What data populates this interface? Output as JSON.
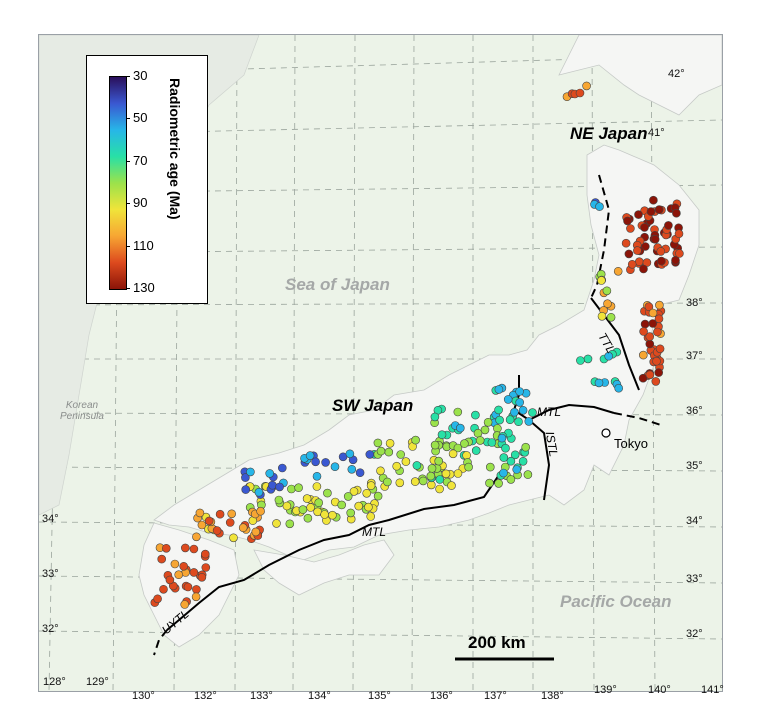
{
  "legend": {
    "title": "Radiometric age (Ma)",
    "ticks": [
      "30",
      "50",
      "70",
      "90",
      "110",
      "130"
    ],
    "colormap": [
      "#2a0f5a",
      "#3a58d1",
      "#27b6e8",
      "#28e0a6",
      "#9be24b",
      "#f0e43a",
      "#f7a633",
      "#dd4a1e",
      "#8b1408"
    ]
  },
  "regions": {
    "ne": "NE Japan",
    "sw": "SW Japan",
    "korea": "Korean\nPeninsula",
    "tokyo": "Tokyo"
  },
  "seas": {
    "japan": "Sea of Japan",
    "pacific": "Pacific Ocean"
  },
  "faults": {
    "ttl": "TTL",
    "mtl_east": "MTL",
    "istl": "ISTL",
    "mtl_south": "MTL",
    "uytl": "UYTL"
  },
  "scale_bar": {
    "label": "200 km"
  },
  "lon_labels": [
    "128°",
    "129°",
    "130°",
    "132°",
    "133°",
    "134°",
    "135°",
    "136°",
    "137°",
    "138°",
    "139°",
    "140°",
    "141°"
  ],
  "lat_labels_right": [
    "42°",
    "41°",
    "38°",
    "37°",
    "36°",
    "35°",
    "34°",
    "33°",
    "32°"
  ],
  "lat_labels_left": [
    "34°",
    "33°",
    "32°"
  ],
  "samples": {
    "ne": [
      [
        "#e6531f"
      ],
      [
        "#cc3617"
      ]
    ],
    "age_groups": {
      "hokkaido": 112,
      "tohoku_north": 124,
      "tohoku_west": 92,
      "tohoku_south": 118,
      "hokuriku": 62,
      "chubu": 70,
      "kinki": 85,
      "chugoku_east": 48,
      "chugoku_central": 88,
      "chugoku_west": 108,
      "kyushu": 115
    }
  }
}
